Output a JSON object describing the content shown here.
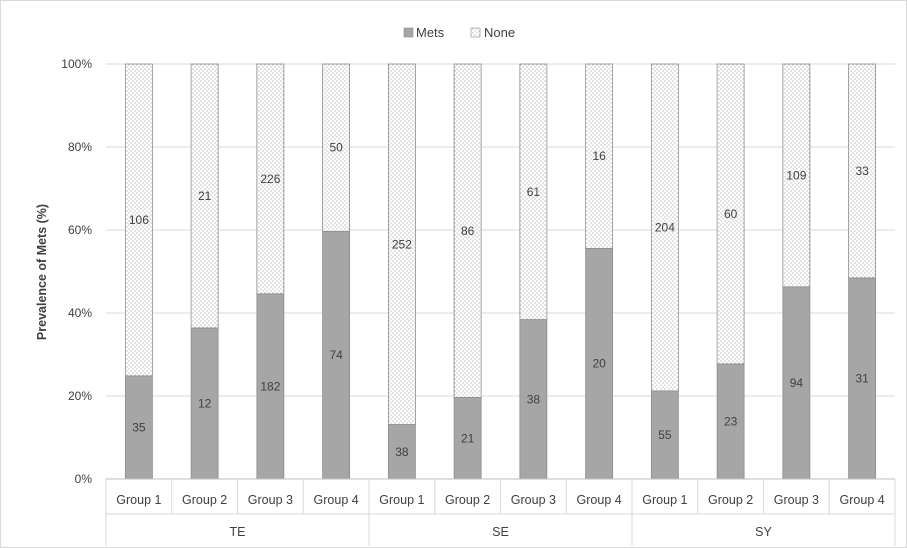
{
  "chart_data": {
    "type": "bar",
    "stacked": "percent",
    "ylabel": "Prevalence of Mets (%)",
    "yticks": [
      "0%",
      "20%",
      "40%",
      "60%",
      "80%",
      "100%"
    ],
    "ylim": [
      0,
      100
    ],
    "grid": true,
    "legend_position": "top",
    "groups": [
      {
        "name": "TE",
        "categories": [
          "Group 1",
          "Group 2",
          "Group 3",
          "Group 4"
        ]
      },
      {
        "name": "SE",
        "categories": [
          "Group 1",
          "Group 2",
          "Group 3",
          "Group 4"
        ]
      },
      {
        "name": "SY",
        "categories": [
          "Group 1",
          "Group 2",
          "Group 3",
          "Group 4"
        ]
      }
    ],
    "series": [
      {
        "name": "Mets",
        "color": "#a6a6a6",
        "pattern": "solid",
        "values": [
          35,
          12,
          182,
          74,
          38,
          21,
          38,
          20,
          55,
          23,
          94,
          31
        ]
      },
      {
        "name": "None",
        "color": "#ffffff",
        "pattern": "dotted",
        "values": [
          106,
          21,
          226,
          50,
          252,
          86,
          61,
          16,
          204,
          60,
          109,
          33
        ]
      }
    ]
  }
}
